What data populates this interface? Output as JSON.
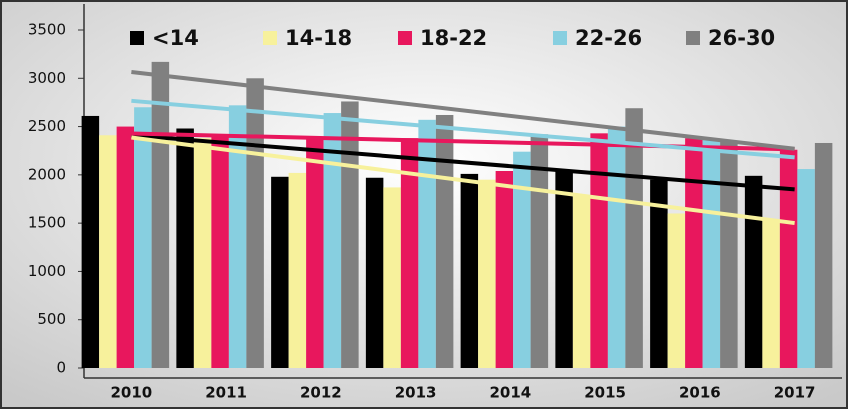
{
  "chart_data": {
    "type": "bar",
    "categories": [
      "2010",
      "2011",
      "2012",
      "2013",
      "2014",
      "2015",
      "2016",
      "2017"
    ],
    "series": [
      {
        "name": "<14",
        "color": "#000000",
        "values": [
          2610,
          2480,
          1980,
          1970,
          2010,
          2050,
          1950,
          1990
        ]
      },
      {
        "name": "14-18",
        "color": "#f7f19c",
        "values": [
          2410,
          2380,
          2020,
          1870,
          1950,
          1780,
          1600,
          1540
        ]
      },
      {
        "name": "18-22",
        "color": "#e8175d",
        "values": [
          2500,
          2400,
          2380,
          2380,
          2040,
          2430,
          2380,
          2260
        ]
      },
      {
        "name": "22-26",
        "color": "#87cfe0",
        "values": [
          2700,
          2720,
          2640,
          2570,
          2240,
          2500,
          2360,
          2060
        ]
      },
      {
        "name": "26-30",
        "color": "#808080",
        "values": [
          3170,
          3000,
          2760,
          2620,
          2420,
          2690,
          2350,
          2330
        ]
      }
    ],
    "ylim": [
      0,
      3500
    ],
    "yticks": [
      0,
      500,
      1000,
      1500,
      2000,
      2500,
      3000,
      3500
    ],
    "trendlines": true
  }
}
